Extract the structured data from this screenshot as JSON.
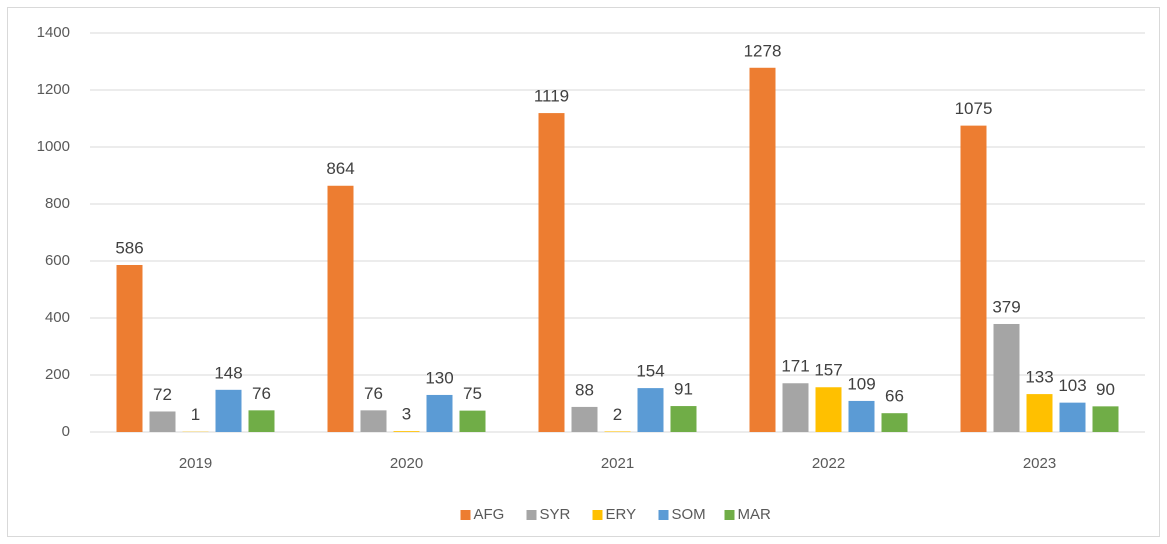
{
  "chart_data": {
    "type": "bar",
    "categories": [
      "2019",
      "2020",
      "2021",
      "2022",
      "2023"
    ],
    "series": [
      {
        "name": "AFG",
        "color": "#ed7d31",
        "values": [
          586,
          864,
          1119,
          1278,
          1075
        ]
      },
      {
        "name": "SYR",
        "color": "#a5a5a5",
        "values": [
          72,
          76,
          88,
          171,
          379
        ]
      },
      {
        "name": "ERY",
        "color": "#ffc000",
        "values": [
          1,
          3,
          2,
          157,
          133
        ]
      },
      {
        "name": "SOM",
        "color": "#5b9bd5",
        "values": [
          148,
          130,
          154,
          109,
          103
        ]
      },
      {
        "name": "MAR",
        "color": "#70ad47",
        "values": [
          76,
          75,
          91,
          66,
          90
        ]
      }
    ],
    "ylim": [
      0,
      1400
    ],
    "yticks": [
      0,
      200,
      400,
      600,
      800,
      1000,
      1200,
      1400
    ],
    "grid": true,
    "legend": "bottom"
  }
}
